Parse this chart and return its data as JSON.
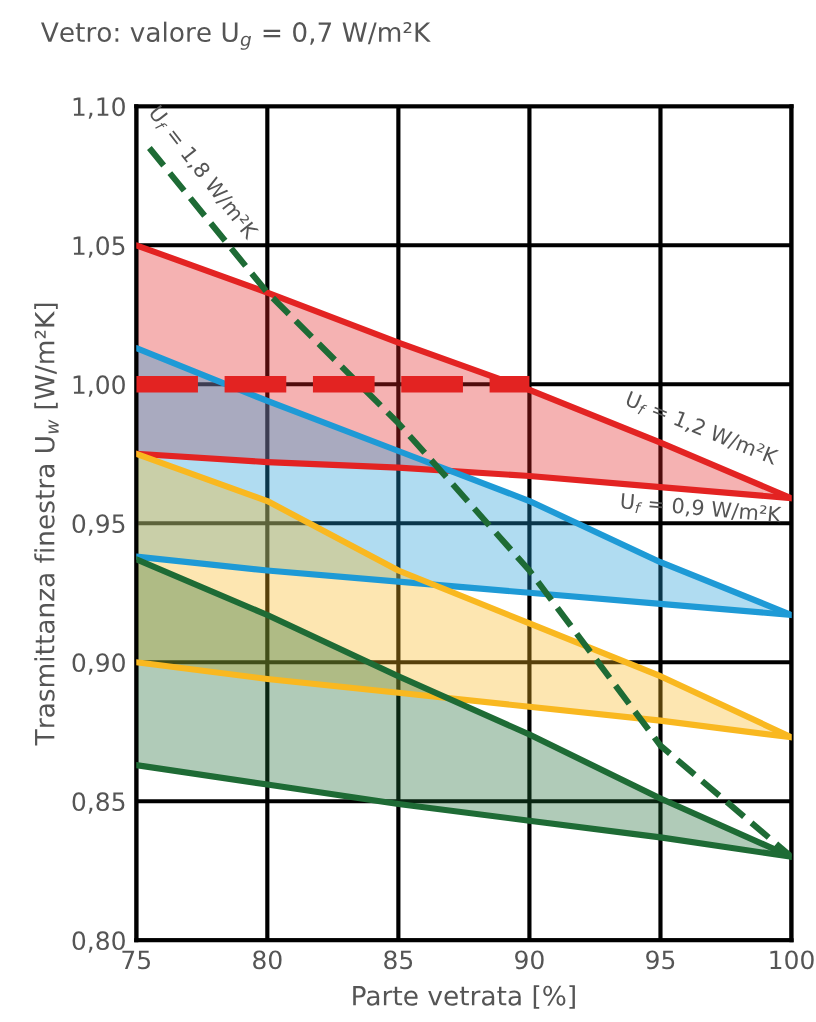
{
  "chart_data": {
    "type": "line",
    "title": "Vetro: valore U$_{g}$ = 0,7 W/m²K",
    "xlabel": "Parte vetrata [%]",
    "ylabel": "Trasmittanza finestra U$_{w}$ [W/m²K]",
    "x": [
      75,
      80,
      85,
      90,
      95,
      100
    ],
    "series": [
      {
        "color": "#e32322",
        "values": [
          1.05,
          1.033,
          1.015,
          0.998,
          0.979,
          0.959
        ],
        "lower": [
          0.975,
          0.972,
          0.97,
          0.967,
          0.963,
          0.959
        ],
        "upper": [
          1.05,
          1.033,
          1.015,
          0.998,
          0.979,
          0.959
        ]
      },
      {
        "color": "#e32322",
        "values": [
          0.975,
          0.972,
          0.97,
          0.967,
          0.963,
          0.959
        ]
      },
      {
        "color": "#1e9ad6",
        "values": [
          1.013,
          0.994,
          0.976,
          0.958,
          0.936,
          0.917
        ],
        "lower": [
          0.938,
          0.933,
          0.929,
          0.925,
          0.921,
          0.917
        ],
        "upper": [
          1.013,
          0.994,
          0.976,
          0.958,
          0.936,
          0.917
        ]
      },
      {
        "color": "#1e9ad6",
        "values": [
          0.938,
          0.933,
          0.929,
          0.925,
          0.921,
          0.917
        ]
      },
      {
        "color": "#f9b820",
        "values": [
          0.975,
          0.958,
          0.933,
          0.914,
          0.895,
          0.873
        ],
        "lower": [
          0.9,
          0.894,
          0.889,
          0.884,
          0.879,
          0.873
        ],
        "upper": [
          0.975,
          0.958,
          0.933,
          0.914,
          0.895,
          0.873
        ]
      },
      {
        "color": "#f9b820",
        "values": [
          0.9,
          0.894,
          0.889,
          0.884,
          0.879,
          0.873
        ]
      },
      {
        "color": "#1e6b35",
        "values": [
          0.937,
          0.917,
          0.895,
          0.874,
          0.851,
          0.83
        ],
        "lower": [
          0.863,
          0.856,
          0.849,
          0.843,
          0.837,
          0.83
        ],
        "upper": [
          0.937,
          0.917,
          0.895,
          0.874,
          0.851,
          0.83
        ]
      },
      {
        "color": "#1e6b35",
        "values": [
          0.863,
          0.856,
          0.849,
          0.843,
          0.837,
          0.83
        ]
      },
      {
        "color": "#1e6b35",
        "line_style": "dashed",
        "x": [
          75.5,
          80,
          85,
          90,
          95,
          100
        ],
        "values": [
          1.085,
          1.033,
          0.986,
          0.933,
          0.87,
          0.83
        ]
      },
      {
        "color": "#e32322",
        "line_style": "dashed",
        "x": [
          75,
          90
        ],
        "values": [
          1.0,
          1.0
        ]
      }
    ],
    "xlim": [
      75,
      100
    ],
    "ylim": [
      0.8,
      1.1
    ],
    "xticks": [
      75,
      80,
      85,
      90,
      95,
      100
    ],
    "yticks": [
      {
        "value": 0.8,
        "label": "0,80"
      },
      {
        "value": 0.85,
        "label": "0,85"
      },
      {
        "value": 0.9,
        "label": "0,90"
      },
      {
        "value": 0.95,
        "label": "0,95"
      },
      {
        "value": 1.0,
        "label": "1,00"
      },
      {
        "value": 1.05,
        "label": "1,05"
      },
      {
        "value": 1.1,
        "label": "1,10"
      }
    ],
    "grid": true,
    "annotations": [
      "U$_{f}$ = 1,8 W/m²K",
      "U$_{f}$ = 1,2 W/m²K",
      "U$_{f}$ = 0,9 W/m²K"
    ]
  }
}
